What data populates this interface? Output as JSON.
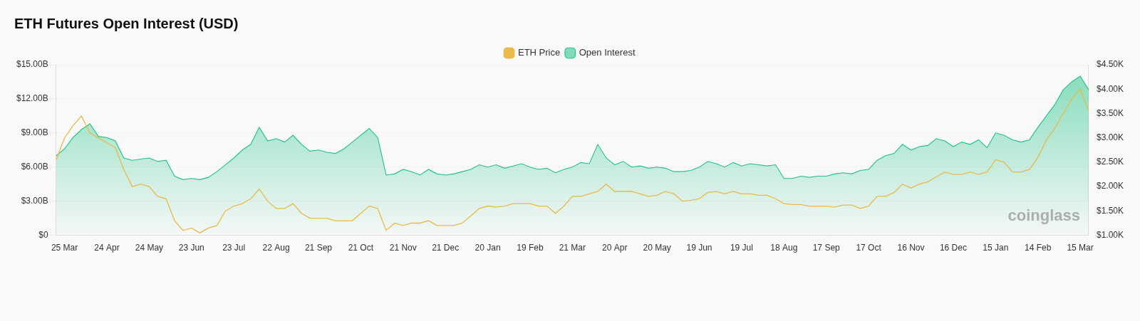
{
  "chart_data": {
    "type": "line",
    "title": "ETH Futures Open Interest (USD)",
    "annotations": [
      "coinglass"
    ],
    "legend": "top",
    "grid": true,
    "categories": [
      null,
      "25 Mar",
      null,
      null,
      null,
      null,
      "24 Apr",
      null,
      null,
      null,
      null,
      "24 May",
      null,
      null,
      null,
      null,
      "23 Jun",
      null,
      null,
      null,
      null,
      "23 Jul",
      null,
      null,
      null,
      null,
      "22 Aug",
      null,
      null,
      null,
      null,
      "21 Sep",
      null,
      null,
      null,
      null,
      "21 Oct",
      null,
      null,
      null,
      null,
      "21 Nov",
      null,
      null,
      null,
      null,
      "21 Dec",
      null,
      null,
      null,
      null,
      "20 Jan",
      null,
      null,
      null,
      null,
      "19 Feb",
      null,
      null,
      null,
      null,
      "21 Mar",
      null,
      null,
      null,
      null,
      "20 Apr",
      null,
      null,
      null,
      null,
      "20 May",
      null,
      null,
      null,
      null,
      "19 Jun",
      null,
      null,
      null,
      null,
      "19 Jul",
      null,
      null,
      null,
      null,
      "18 Aug",
      null,
      null,
      null,
      null,
      "17 Sep",
      null,
      null,
      null,
      null,
      "17 Oct",
      null,
      null,
      null,
      null,
      "16 Nov",
      null,
      null,
      null,
      null,
      "16 Dec",
      null,
      null,
      null,
      null,
      "15 Jan",
      null,
      null,
      null,
      null,
      "14 Feb",
      null,
      null,
      null,
      null,
      "15 Mar",
      null
    ],
    "ylim": [
      0,
      15
    ],
    "yticks": [
      {
        "value": 0,
        "label": "$0"
      },
      {
        "value": 3,
        "label": "$3.00B"
      },
      {
        "value": 6,
        "label": "$6.00B"
      },
      {
        "value": 9,
        "label": "$9.00B"
      },
      {
        "value": 12,
        "label": "$12.00B"
      },
      {
        "value": 15,
        "label": "$15.00B"
      }
    ],
    "y2lim": [
      1,
      4.5
    ],
    "y2ticks": [
      {
        "value": 1,
        "label": "$1.00K"
      },
      {
        "value": 1.5,
        "label": "$1.50K"
      },
      {
        "value": 2,
        "label": "$2.00K"
      },
      {
        "value": 2.5,
        "label": "$2.50K"
      },
      {
        "value": 3,
        "label": "$3.00K"
      },
      {
        "value": 3.5,
        "label": "$3.50K"
      },
      {
        "value": 4,
        "label": "$4.00K"
      },
      {
        "value": 4.5,
        "label": "$4.50K"
      }
    ],
    "series": [
      {
        "name": "ETH Price",
        "color": "#e9b949",
        "axis": "y2",
        "values": [
          2.55,
          3.0,
          3.25,
          3.45,
          3.1,
          3.0,
          2.9,
          2.8,
          2.35,
          2.0,
          2.05,
          2.0,
          1.8,
          1.75,
          1.3,
          1.1,
          1.15,
          1.05,
          1.15,
          1.2,
          1.5,
          1.6,
          1.65,
          1.75,
          1.95,
          1.7,
          1.55,
          1.55,
          1.65,
          1.45,
          1.35,
          1.35,
          1.35,
          1.3,
          1.3,
          1.3,
          1.45,
          1.6,
          1.55,
          1.1,
          1.25,
          1.2,
          1.25,
          1.25,
          1.3,
          1.2,
          1.2,
          1.2,
          1.25,
          1.4,
          1.55,
          1.6,
          1.58,
          1.6,
          1.65,
          1.65,
          1.65,
          1.6,
          1.6,
          1.45,
          1.6,
          1.8,
          1.8,
          1.85,
          1.9,
          2.05,
          1.9,
          1.9,
          1.9,
          1.85,
          1.8,
          1.82,
          1.9,
          1.85,
          1.7,
          1.72,
          1.75,
          1.88,
          1.9,
          1.85,
          1.9,
          1.85,
          1.85,
          1.82,
          1.82,
          1.75,
          1.65,
          1.63,
          1.63,
          1.6,
          1.6,
          1.6,
          1.58,
          1.62,
          1.62,
          1.55,
          1.6,
          1.8,
          1.8,
          1.88,
          2.05,
          1.97,
          2.05,
          2.1,
          2.2,
          2.3,
          2.25,
          2.25,
          2.3,
          2.25,
          2.3,
          2.55,
          2.5,
          2.3,
          2.3,
          2.35,
          2.6,
          2.95,
          3.2,
          3.5,
          3.8,
          4.0,
          3.55
        ]
      },
      {
        "name": "Open Interest",
        "color": "#1fc384",
        "axis": "y",
        "values": [
          7.0,
          7.6,
          8.6,
          9.3,
          9.8,
          8.7,
          8.6,
          8.3,
          6.8,
          6.6,
          6.7,
          6.8,
          6.5,
          6.6,
          5.2,
          4.9,
          5.0,
          4.9,
          5.1,
          5.6,
          6.2,
          6.8,
          7.5,
          8.0,
          9.5,
          8.3,
          8.5,
          8.2,
          8.8,
          8.0,
          7.4,
          7.5,
          7.3,
          7.2,
          7.6,
          8.2,
          8.8,
          9.4,
          8.6,
          5.3,
          5.4,
          5.8,
          5.6,
          5.3,
          5.8,
          5.4,
          5.3,
          5.4,
          5.6,
          5.8,
          6.2,
          6.0,
          6.2,
          5.9,
          6.1,
          6.3,
          6.0,
          5.8,
          5.9,
          5.5,
          5.8,
          6.0,
          6.4,
          6.3,
          8.0,
          6.8,
          6.2,
          6.5,
          6.0,
          6.1,
          5.9,
          6.0,
          5.9,
          5.6,
          5.6,
          5.7,
          6.0,
          6.5,
          6.3,
          6.0,
          6.4,
          6.1,
          6.3,
          6.2,
          6.1,
          6.2,
          5.0,
          5.0,
          5.2,
          5.1,
          5.2,
          5.2,
          5.4,
          5.5,
          5.4,
          5.7,
          5.8,
          6.6,
          7.0,
          7.2,
          8.0,
          7.5,
          7.8,
          7.9,
          8.5,
          8.3,
          7.8,
          8.2,
          8.0,
          8.4,
          7.7,
          9.0,
          8.8,
          8.4,
          8.2,
          8.4,
          9.5,
          10.5,
          11.5,
          12.8,
          13.5,
          14.0,
          12.8
        ]
      }
    ]
  }
}
